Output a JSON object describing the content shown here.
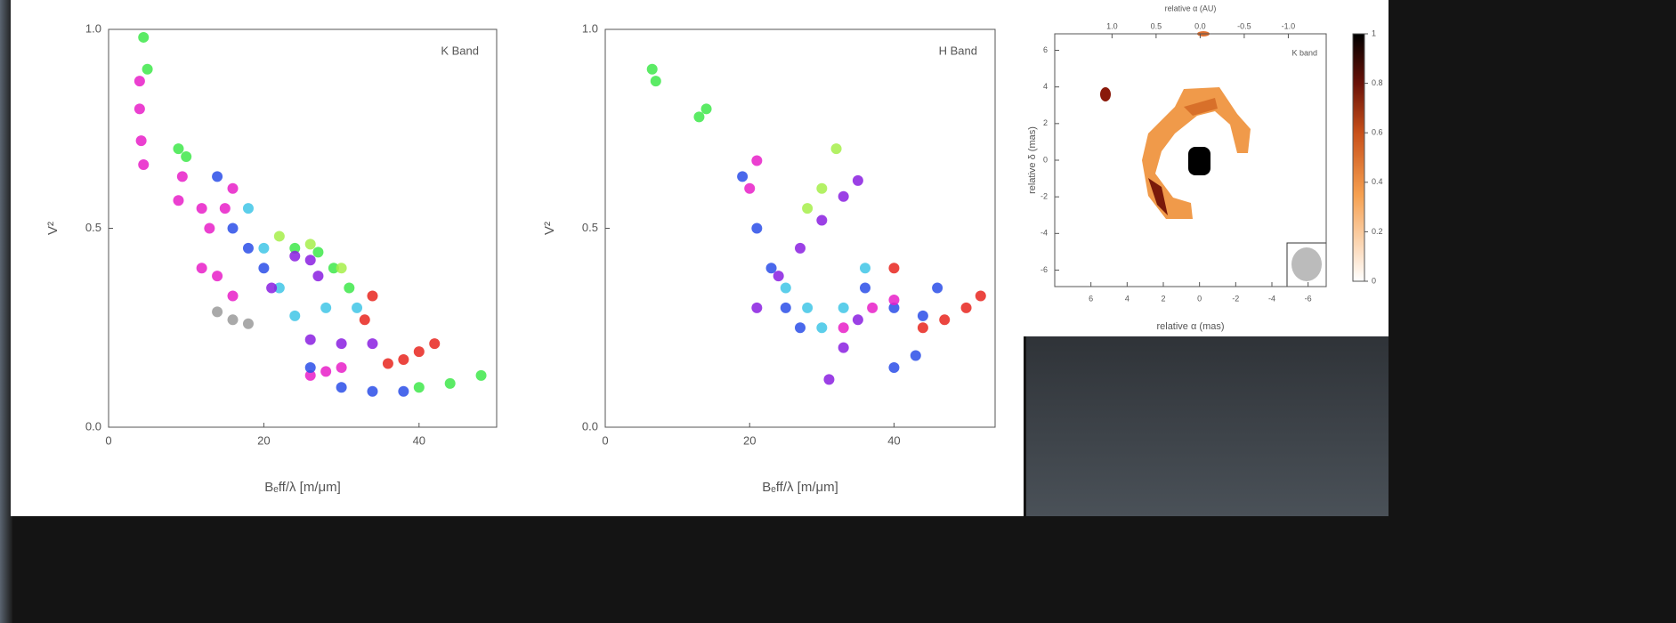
{
  "chart_data": [
    {
      "type": "scatter",
      "annotation": "K Band",
      "ylabel": "V²",
      "xlabel": "Bₑff/λ [m/μm]",
      "xlim": [
        0,
        50
      ],
      "xticks": [
        0,
        20,
        40
      ],
      "ylim": [
        0,
        1
      ],
      "yticks": [
        {
          "value": 0,
          "label": "0.0"
        },
        0.5,
        {
          "value": 1,
          "label": "1.0"
        }
      ],
      "series": [
        {
          "color": "#3ee84a",
          "x": [
            4.5,
            5,
            9,
            10,
            24,
            27,
            29,
            31,
            40,
            44,
            48
          ],
          "values": [
            0.98,
            0.9,
            0.7,
            0.68,
            0.45,
            0.44,
            0.4,
            0.35,
            0.1,
            0.11,
            0.13
          ]
        },
        {
          "color": "#e81fc8",
          "x": [
            4,
            4,
            4.2,
            4.5,
            9.5,
            9,
            12,
            13,
            15,
            16,
            12,
            14,
            16,
            26,
            28,
            30
          ],
          "values": [
            0.87,
            0.8,
            0.72,
            0.66,
            0.63,
            0.57,
            0.55,
            0.5,
            0.55,
            0.6,
            0.4,
            0.38,
            0.33,
            0.13,
            0.14,
            0.15
          ]
        },
        {
          "color": "#2a4de8",
          "x": [
            14,
            16,
            18,
            20,
            26,
            30,
            34,
            38
          ],
          "values": [
            0.63,
            0.5,
            0.45,
            0.4,
            0.15,
            0.1,
            0.09,
            0.09
          ]
        },
        {
          "color": "#3fc6e6",
          "x": [
            18,
            20,
            22,
            24,
            28,
            32
          ],
          "values": [
            0.55,
            0.45,
            0.35,
            0.28,
            0.3,
            0.3
          ]
        },
        {
          "color": "#8a1fe0",
          "x": [
            21,
            24,
            26,
            27,
            26,
            30,
            34
          ],
          "values": [
            0.35,
            0.43,
            0.42,
            0.38,
            0.22,
            0.21,
            0.21
          ]
        },
        {
          "color": "#e8261f",
          "x": [
            34,
            33,
            36,
            38,
            40,
            42
          ],
          "values": [
            0.33,
            0.27,
            0.16,
            0.17,
            0.19,
            0.21
          ]
        },
        {
          "color": "#9a9a9a",
          "x": [
            14,
            16,
            18
          ],
          "values": [
            0.29,
            0.27,
            0.26
          ]
        },
        {
          "color": "#a6ee4a",
          "x": [
            22,
            26,
            30
          ],
          "values": [
            0.48,
            0.46,
            0.4
          ]
        }
      ]
    },
    {
      "type": "scatter",
      "annotation": "H Band",
      "ylabel": "V²",
      "xlabel": "Bₑff/λ [m/μm]",
      "xlim": [
        0,
        54
      ],
      "xticks": [
        0,
        20,
        40
      ],
      "ylim": [
        0,
        1
      ],
      "yticks": [
        {
          "value": 0,
          "label": "0.0"
        },
        0.5,
        {
          "value": 1,
          "label": "1.0"
        }
      ],
      "series": [
        {
          "color": "#3ee84a",
          "x": [
            6.5,
            7,
            13,
            14
          ],
          "values": [
            0.9,
            0.87,
            0.78,
            0.8
          ]
        },
        {
          "color": "#2a4de8",
          "x": [
            19,
            21,
            23,
            25,
            27,
            36,
            40,
            44,
            46,
            40,
            43
          ],
          "values": [
            0.63,
            0.5,
            0.4,
            0.3,
            0.25,
            0.35,
            0.3,
            0.28,
            0.35,
            0.15,
            0.18
          ]
        },
        {
          "color": "#e81fc8",
          "x": [
            21,
            20,
            33,
            37,
            40
          ],
          "values": [
            0.67,
            0.6,
            0.25,
            0.3,
            0.32
          ]
        },
        {
          "color": "#8a1fe0",
          "x": [
            21,
            24,
            27,
            30,
            33,
            35,
            31,
            33,
            35
          ],
          "values": [
            0.3,
            0.38,
            0.45,
            0.52,
            0.58,
            0.62,
            0.12,
            0.2,
            0.27
          ]
        },
        {
          "color": "#3fc6e6",
          "x": [
            25,
            28,
            30,
            33,
            36
          ],
          "values": [
            0.35,
            0.3,
            0.25,
            0.3,
            0.4
          ]
        },
        {
          "color": "#a6ee4a",
          "x": [
            28,
            30,
            32
          ],
          "values": [
            0.55,
            0.6,
            0.7
          ]
        },
        {
          "color": "#e8261f",
          "x": [
            40,
            44,
            47,
            50,
            52
          ],
          "values": [
            0.4,
            0.25,
            0.27,
            0.3,
            0.33
          ]
        }
      ]
    },
    {
      "type": "image",
      "annotation": "K band",
      "xlabel": "relative α (mas)",
      "ylabel": "relative δ (mas)",
      "x2label": "relative α (AU)",
      "xlim": [
        8,
        -7
      ],
      "xticks": [
        6,
        4,
        2,
        0,
        -2,
        -4,
        -6
      ],
      "ylim": [
        -6.9,
        6.9
      ],
      "yticks": [
        6,
        4,
        2,
        0,
        -2,
        -4,
        -6
      ],
      "x2lim": [
        1.65,
        -1.43
      ],
      "x2ticks": [
        {
          "value": 1,
          "label": "1.0"
        },
        0.5,
        {
          "value": 0,
          "label": "0.0"
        },
        -0.5,
        {
          "value": -1,
          "label": "-1.0"
        }
      ],
      "clim": [
        0,
        1
      ],
      "cticks": [
        0,
        0.2,
        0.4,
        0.6,
        0.8,
        1
      ]
    }
  ]
}
